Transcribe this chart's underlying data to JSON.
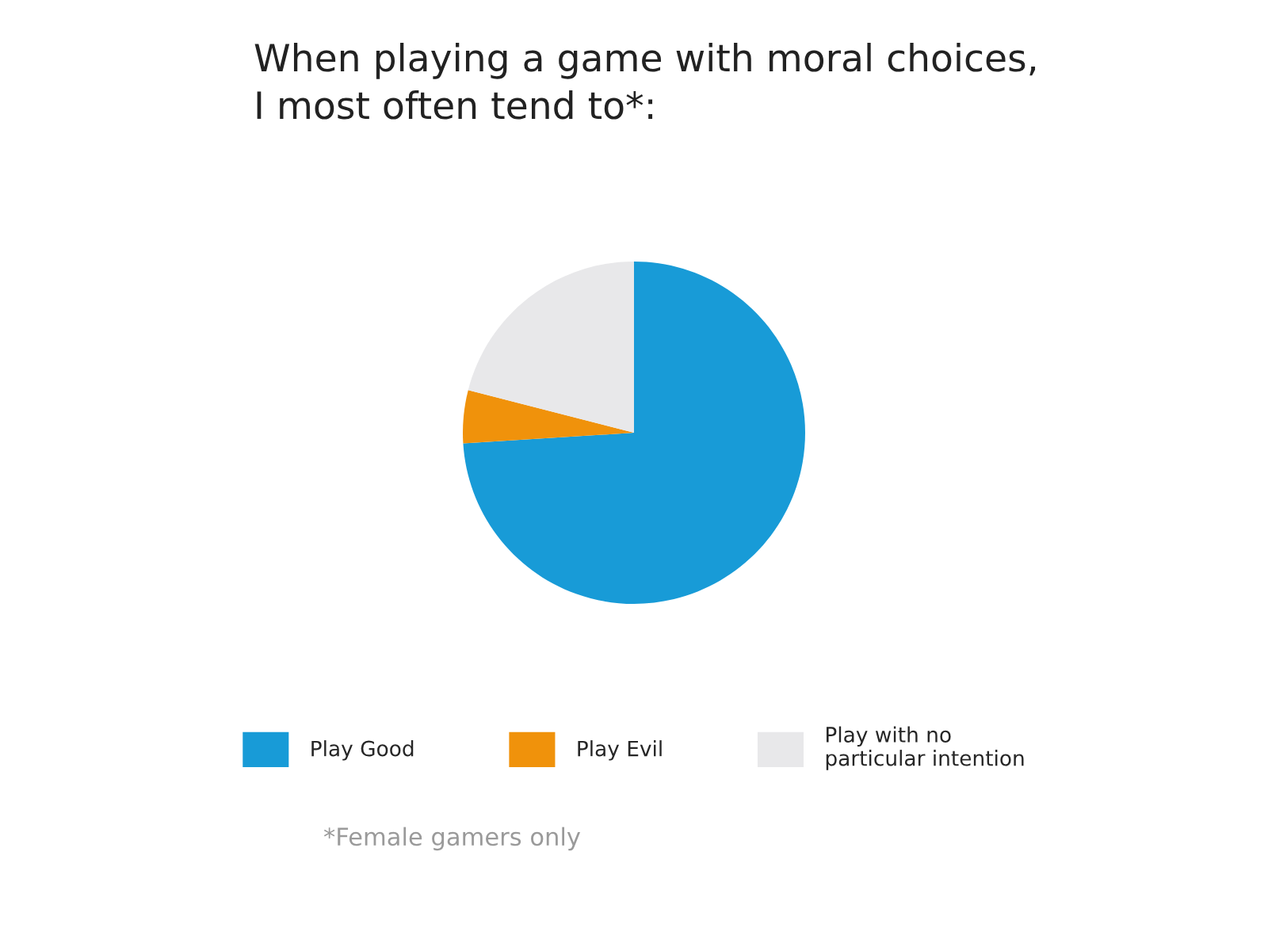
{
  "chart_data": {
    "type": "pie",
    "title": "When playing a game with moral choices,\nI most often tend to*:",
    "categories": [
      "Play Good",
      "Play Evil",
      "Play with no\nparticular intention"
    ],
    "values": [
      74,
      5,
      21
    ],
    "colors": [
      "#189bd7",
      "#f0920b",
      "#e8e8ea"
    ],
    "legend": "bottom",
    "annotations": [
      "*Female gamers only"
    ]
  }
}
